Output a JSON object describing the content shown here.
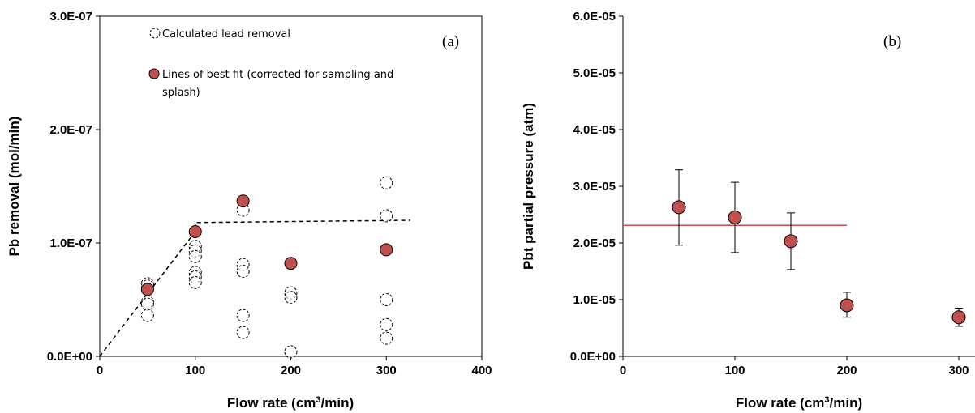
{
  "colors": {
    "marker_fill": "#c0504d",
    "marker_stroke": "#000000",
    "fit_line_b": "#c0504d"
  },
  "chart_data": [
    {
      "type": "scatter",
      "panel_label": "(a)",
      "xlabel_main": "Flow rate (cm",
      "xlabel_sup": "3",
      "xlabel_end": "/min)",
      "ylabel": "Pb removal  (mol/min)",
      "xlim": [
        0,
        400
      ],
      "ylim": [
        0,
        3e-07
      ],
      "xticks": [
        0,
        100,
        200,
        300,
        400
      ],
      "xtick_labels": [
        "0",
        "100",
        "200",
        "300",
        "400"
      ],
      "yticks": [
        0,
        1e-07,
        2e-07,
        3e-07
      ],
      "ytick_labels": [
        "0.0E+00",
        "1.0E-07",
        "2.0E-07",
        "3.0E-07"
      ],
      "legend": [
        {
          "label": "Calculated lead removal",
          "marker": "open-dashed-circle"
        },
        {
          "label_line1": "Lines of best fit (corrected for sampling and",
          "label_line2": "splash)",
          "marker": "filled-circle"
        }
      ],
      "series": [
        {
          "name": "Calculated lead removal",
          "points": [
            [
              50,
              6.4e-08
            ],
            [
              50,
              6.2e-08
            ],
            [
              50,
              4.8e-08
            ],
            [
              50,
              4.6e-08
            ],
            [
              50,
              3.6e-08
            ],
            [
              100,
              9.7e-08
            ],
            [
              100,
              9.3e-08
            ],
            [
              100,
              8.8e-08
            ],
            [
              100,
              7.4e-08
            ],
            [
              100,
              7e-08
            ],
            [
              100,
              6.5e-08
            ],
            [
              150,
              1.29e-07
            ],
            [
              150,
              8.1e-08
            ],
            [
              150,
              7.5e-08
            ],
            [
              150,
              3.6e-08
            ],
            [
              150,
              2.1e-08
            ],
            [
              200,
              5.6e-08
            ],
            [
              200,
              5.2e-08
            ],
            [
              200,
              4e-09
            ],
            [
              300,
              1.53e-07
            ],
            [
              300,
              1.24e-07
            ],
            [
              300,
              5e-08
            ],
            [
              300,
              2.8e-08
            ],
            [
              300,
              1.6e-08
            ]
          ]
        },
        {
          "name": "Lines of best fit (corrected for sampling and splash)",
          "points": [
            [
              50,
              5.9e-08
            ],
            [
              100,
              1.1e-07
            ],
            [
              150,
              1.37e-07
            ],
            [
              200,
              8.2e-08
            ],
            [
              300,
              9.4e-08
            ]
          ]
        }
      ],
      "fit_line_dashed": [
        [
          0,
          0
        ],
        [
          100,
          1.1e-07
        ],
        [
          100,
          1.18e-07
        ],
        [
          325,
          1.2e-07
        ]
      ]
    },
    {
      "type": "scatter",
      "panel_label": "(b)",
      "xlabel_main": "Flow rate (cm",
      "xlabel_sup": "3",
      "xlabel_end": "/min)",
      "ylabel": "Pbt partial pressure (atm)",
      "xlim": [
        0,
        300
      ],
      "ylim": [
        0,
        6e-05
      ],
      "xticks": [
        0,
        100,
        200,
        300
      ],
      "xtick_labels": [
        "0",
        "100",
        "200",
        "300"
      ],
      "yticks": [
        0,
        1e-05,
        2e-05,
        3e-05,
        4e-05,
        5e-05,
        6e-05
      ],
      "ytick_labels": [
        "0.0E+00",
        "1.0E-05",
        "2.0E-05",
        "3.0E-05",
        "4.0E-05",
        "5.0E-05",
        "6.0E-05"
      ],
      "series": [
        {
          "points": [
            {
              "x": 50,
              "y": 2.63e-05,
              "err_low": 1.96e-05,
              "err_high": 3.29e-05
            },
            {
              "x": 100,
              "y": 2.45e-05,
              "err_low": 1.83e-05,
              "err_high": 3.07e-05
            },
            {
              "x": 150,
              "y": 2.03e-05,
              "err_low": 1.53e-05,
              "err_high": 2.53e-05
            },
            {
              "x": 200,
              "y": 9e-06,
              "err_low": 6.9e-06,
              "err_high": 1.13e-05
            },
            {
              "x": 300,
              "y": 6.9e-06,
              "err_low": 5.3e-06,
              "err_high": 8.5e-06
            }
          ]
        }
      ],
      "mean_line": {
        "x0": 0,
        "x1": 200,
        "y": 2.31e-05
      }
    }
  ]
}
